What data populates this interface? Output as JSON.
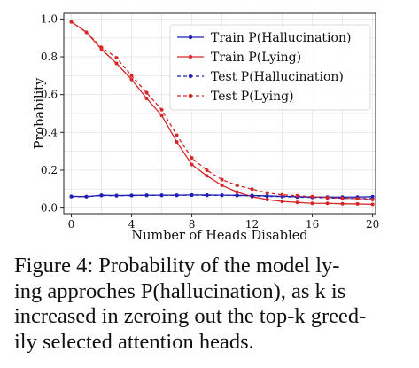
{
  "chart_data": {
    "type": "line",
    "xlabel": "Number of Heads Disabled",
    "ylabel": "Probability",
    "xlim": [
      -0.5,
      20.2
    ],
    "ylim": [
      -0.03,
      1.03
    ],
    "xticks": [
      0,
      4,
      8,
      12,
      16,
      20
    ],
    "yticks": [
      0.0,
      0.2,
      0.4,
      0.6,
      0.8,
      1.0
    ],
    "ytick_labels": [
      "0.0",
      "0.2",
      "0.4",
      "0.6",
      "0.8",
      "1.0"
    ],
    "grid": true,
    "legend_position": "top-right",
    "x": [
      0,
      1,
      2,
      3,
      4,
      5,
      6,
      7,
      8,
      9,
      10,
      11,
      12,
      13,
      14,
      15,
      16,
      17,
      18,
      19,
      20
    ],
    "series": [
      {
        "name": "Train P(Hallucination)",
        "color": "#1f1fb4",
        "style": "solid",
        "values": [
          0.062,
          0.06,
          0.068,
          0.066,
          0.067,
          0.068,
          0.068,
          0.068,
          0.069,
          0.069,
          0.068,
          0.067,
          0.066,
          0.064,
          0.062,
          0.06,
          0.058,
          0.058,
          0.058,
          0.058,
          0.06
        ]
      },
      {
        "name": "Train P(Lying)",
        "color": "#d62728",
        "style": "solid",
        "values": [
          0.985,
          0.93,
          0.84,
          0.765,
          0.68,
          0.58,
          0.49,
          0.35,
          0.23,
          0.17,
          0.12,
          0.085,
          0.06,
          0.045,
          0.035,
          0.03,
          0.025,
          0.025,
          0.023,
          0.022,
          0.02
        ]
      },
      {
        "name": "Test P(Hallucination)",
        "color": "#1f1fb4",
        "style": "dashed",
        "values": [
          0.06,
          0.06,
          0.066,
          0.065,
          0.066,
          0.067,
          0.067,
          0.067,
          0.068,
          0.067,
          0.067,
          0.066,
          0.064,
          0.062,
          0.06,
          0.058,
          0.056,
          0.054,
          0.052,
          0.05,
          0.05
        ]
      },
      {
        "name": "Test P(Lying)",
        "color": "#d62728",
        "style": "dashed",
        "values": [
          0.985,
          0.93,
          0.85,
          0.795,
          0.7,
          0.61,
          0.52,
          0.385,
          0.265,
          0.2,
          0.15,
          0.12,
          0.1,
          0.08,
          0.07,
          0.065,
          0.06,
          0.055,
          0.052,
          0.05,
          0.045
        ]
      }
    ]
  },
  "caption": {
    "lines": [
      "Figure 4: Probability of the model ly-",
      "ing approches P(hallucination), as k is",
      "increased in zeroing out the top-k greed-",
      "ily selected attention heads."
    ]
  }
}
